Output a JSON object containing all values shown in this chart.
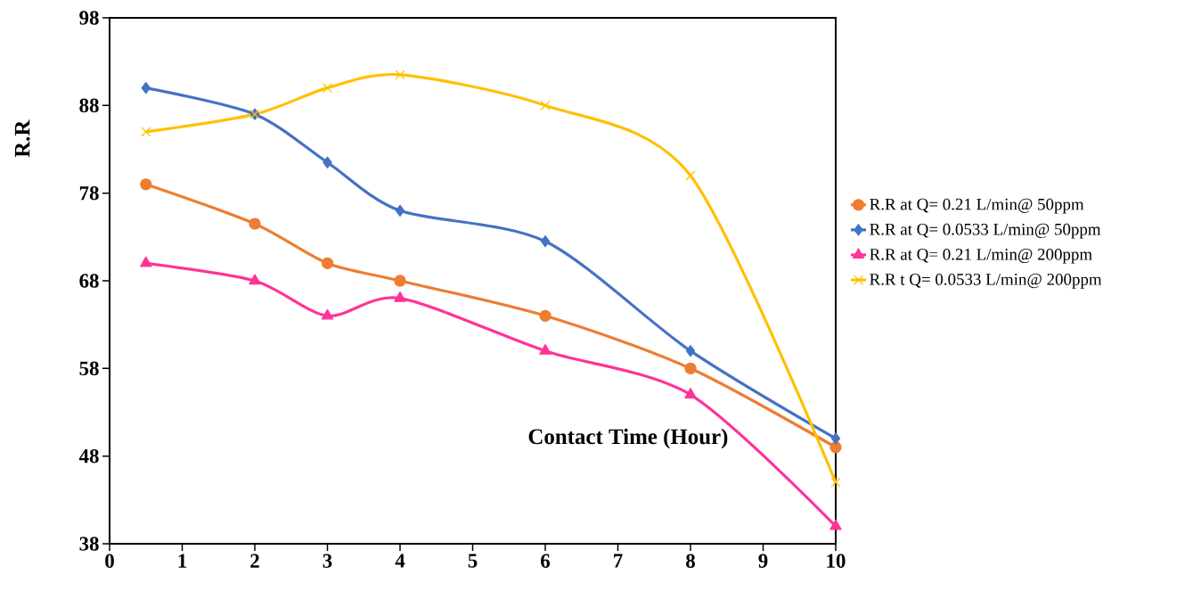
{
  "chart_data": {
    "type": "line",
    "xlabel": "Contact Time (Hour)",
    "ylabel": "R.R",
    "x": [
      0.5,
      2,
      3,
      4,
      6,
      8,
      10
    ],
    "series": [
      {
        "name": "R.R at Q= 0.21 L/min@ 50ppm",
        "color": "#ed7d31",
        "marker": "circle",
        "values": [
          79,
          74.5,
          70,
          68,
          64,
          58,
          49
        ]
      },
      {
        "name": "R.R at Q= 0.0533 L/min@ 50ppm",
        "color": "#4472c4",
        "marker": "diamond",
        "values": [
          90,
          87,
          81.5,
          76,
          72.5,
          60,
          50
        ]
      },
      {
        "name": "R.R at Q= 0.21 L/min@ 200ppm",
        "color": "#ff3399",
        "marker": "triangle",
        "values": [
          70,
          68,
          64,
          66,
          60,
          55,
          40
        ]
      },
      {
        "name": "R.R t Q= 0.0533 L/min@ 200ppm",
        "color": "#ffc000",
        "marker": "cross",
        "values": [
          85,
          87,
          90,
          91.5,
          88,
          80,
          45
        ]
      }
    ],
    "xlim": [
      0,
      10
    ],
    "xticks": [
      0,
      1,
      2,
      3,
      4,
      5,
      6,
      7,
      8,
      9,
      10
    ],
    "ylim": [
      38,
      98
    ],
    "yticks": [
      38,
      48,
      58,
      68,
      78,
      88,
      98
    ],
    "grid": false,
    "legend": "right",
    "line_style": "solid"
  }
}
